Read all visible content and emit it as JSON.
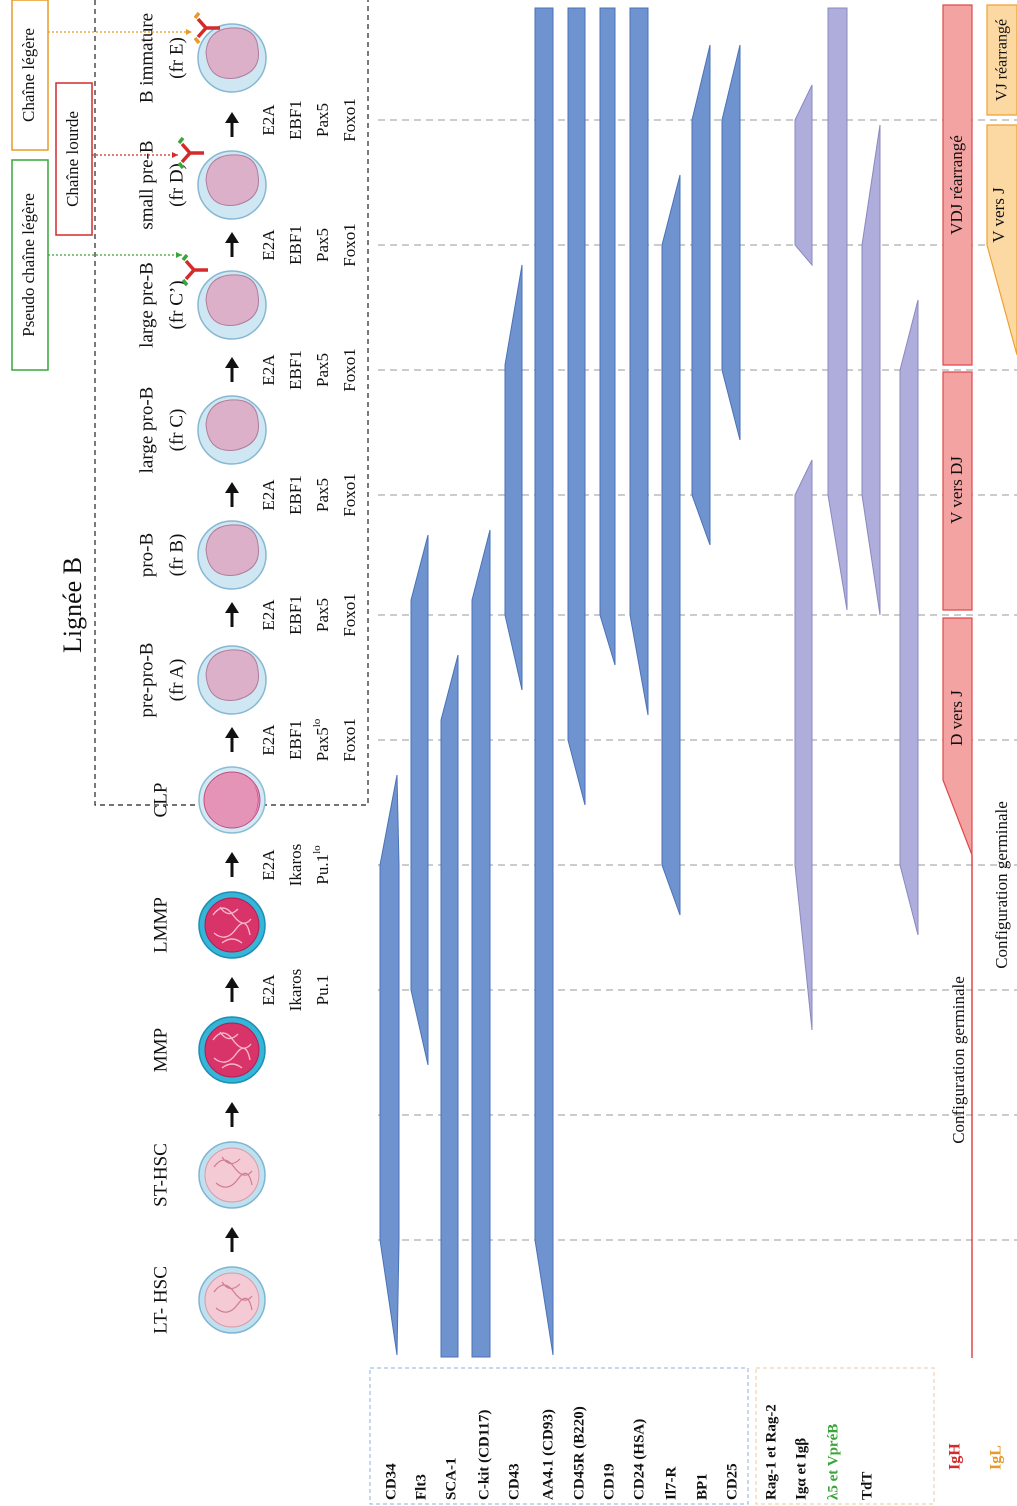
{
  "title": "Lignée B",
  "chains": {
    "pseudo_light": "Pseudo chaîne légère",
    "heavy": "Chaîne lourde",
    "light": "Chaîne légère"
  },
  "stages": [
    {
      "name": "LT- HSC"
    },
    {
      "name": "ST-HSC"
    },
    {
      "name": "MMP"
    },
    {
      "name": "LMMP"
    },
    {
      "name": "CLP"
    },
    {
      "name": "pre-pro-B",
      "fraction": "(fr A)"
    },
    {
      "name": "pro-B",
      "fraction": "(fr B)"
    },
    {
      "name": "large pro-B",
      "fraction": "(fr C)"
    },
    {
      "name": "large pre-B",
      "fraction": "(fr C’)"
    },
    {
      "name": "small pre-B",
      "fraction": "(fr D)"
    },
    {
      "name": "B immature",
      "fraction": "(fr E)"
    }
  ],
  "factors": [
    [
      "E2A",
      "Ikaros",
      "Pu.1"
    ],
    [
      "E2A",
      "Ikaros",
      {
        "base": "Pu.1",
        "sup": "lo"
      }
    ],
    [
      "E2A",
      "EBF1",
      {
        "base": "Pax5",
        "sup": "lo"
      },
      "Foxo1"
    ],
    [
      "E2A",
      "EBF1",
      "Pax5",
      "Foxo1"
    ],
    [
      "E2A",
      "EBF1",
      "Pax5",
      "Foxo1"
    ],
    [
      "E2A",
      "EBF1",
      "Pax5",
      "Foxo1"
    ],
    [
      "E2A",
      "EBF1",
      "Pax5",
      "Foxo1"
    ],
    [
      "E2A",
      "EBF1",
      "Pax5",
      "Foxo1"
    ]
  ],
  "markers": [
    "CD34",
    "Flt3",
    "SCA-1",
    "C-kit (CD117)",
    "CD43",
    "AA4.1 (CD93)",
    "CD45R (B220)",
    "CD19",
    "CD24 (HSA)",
    "Il7-R",
    "BP1",
    "CD25"
  ],
  "genes": [
    "Rag-1 et Rag-2",
    "Igα et Igβ",
    "λ5 et VpréB",
    "TdT"
  ],
  "igh": {
    "label": "IgH",
    "segments": [
      "Configuration germinale",
      "D vers J",
      "V vers DJ",
      "VDJ réarrangé"
    ]
  },
  "igl": {
    "label": "IgL",
    "segments": [
      "Configuration germinale",
      "V vers J",
      "VJ réarrangé"
    ]
  }
}
